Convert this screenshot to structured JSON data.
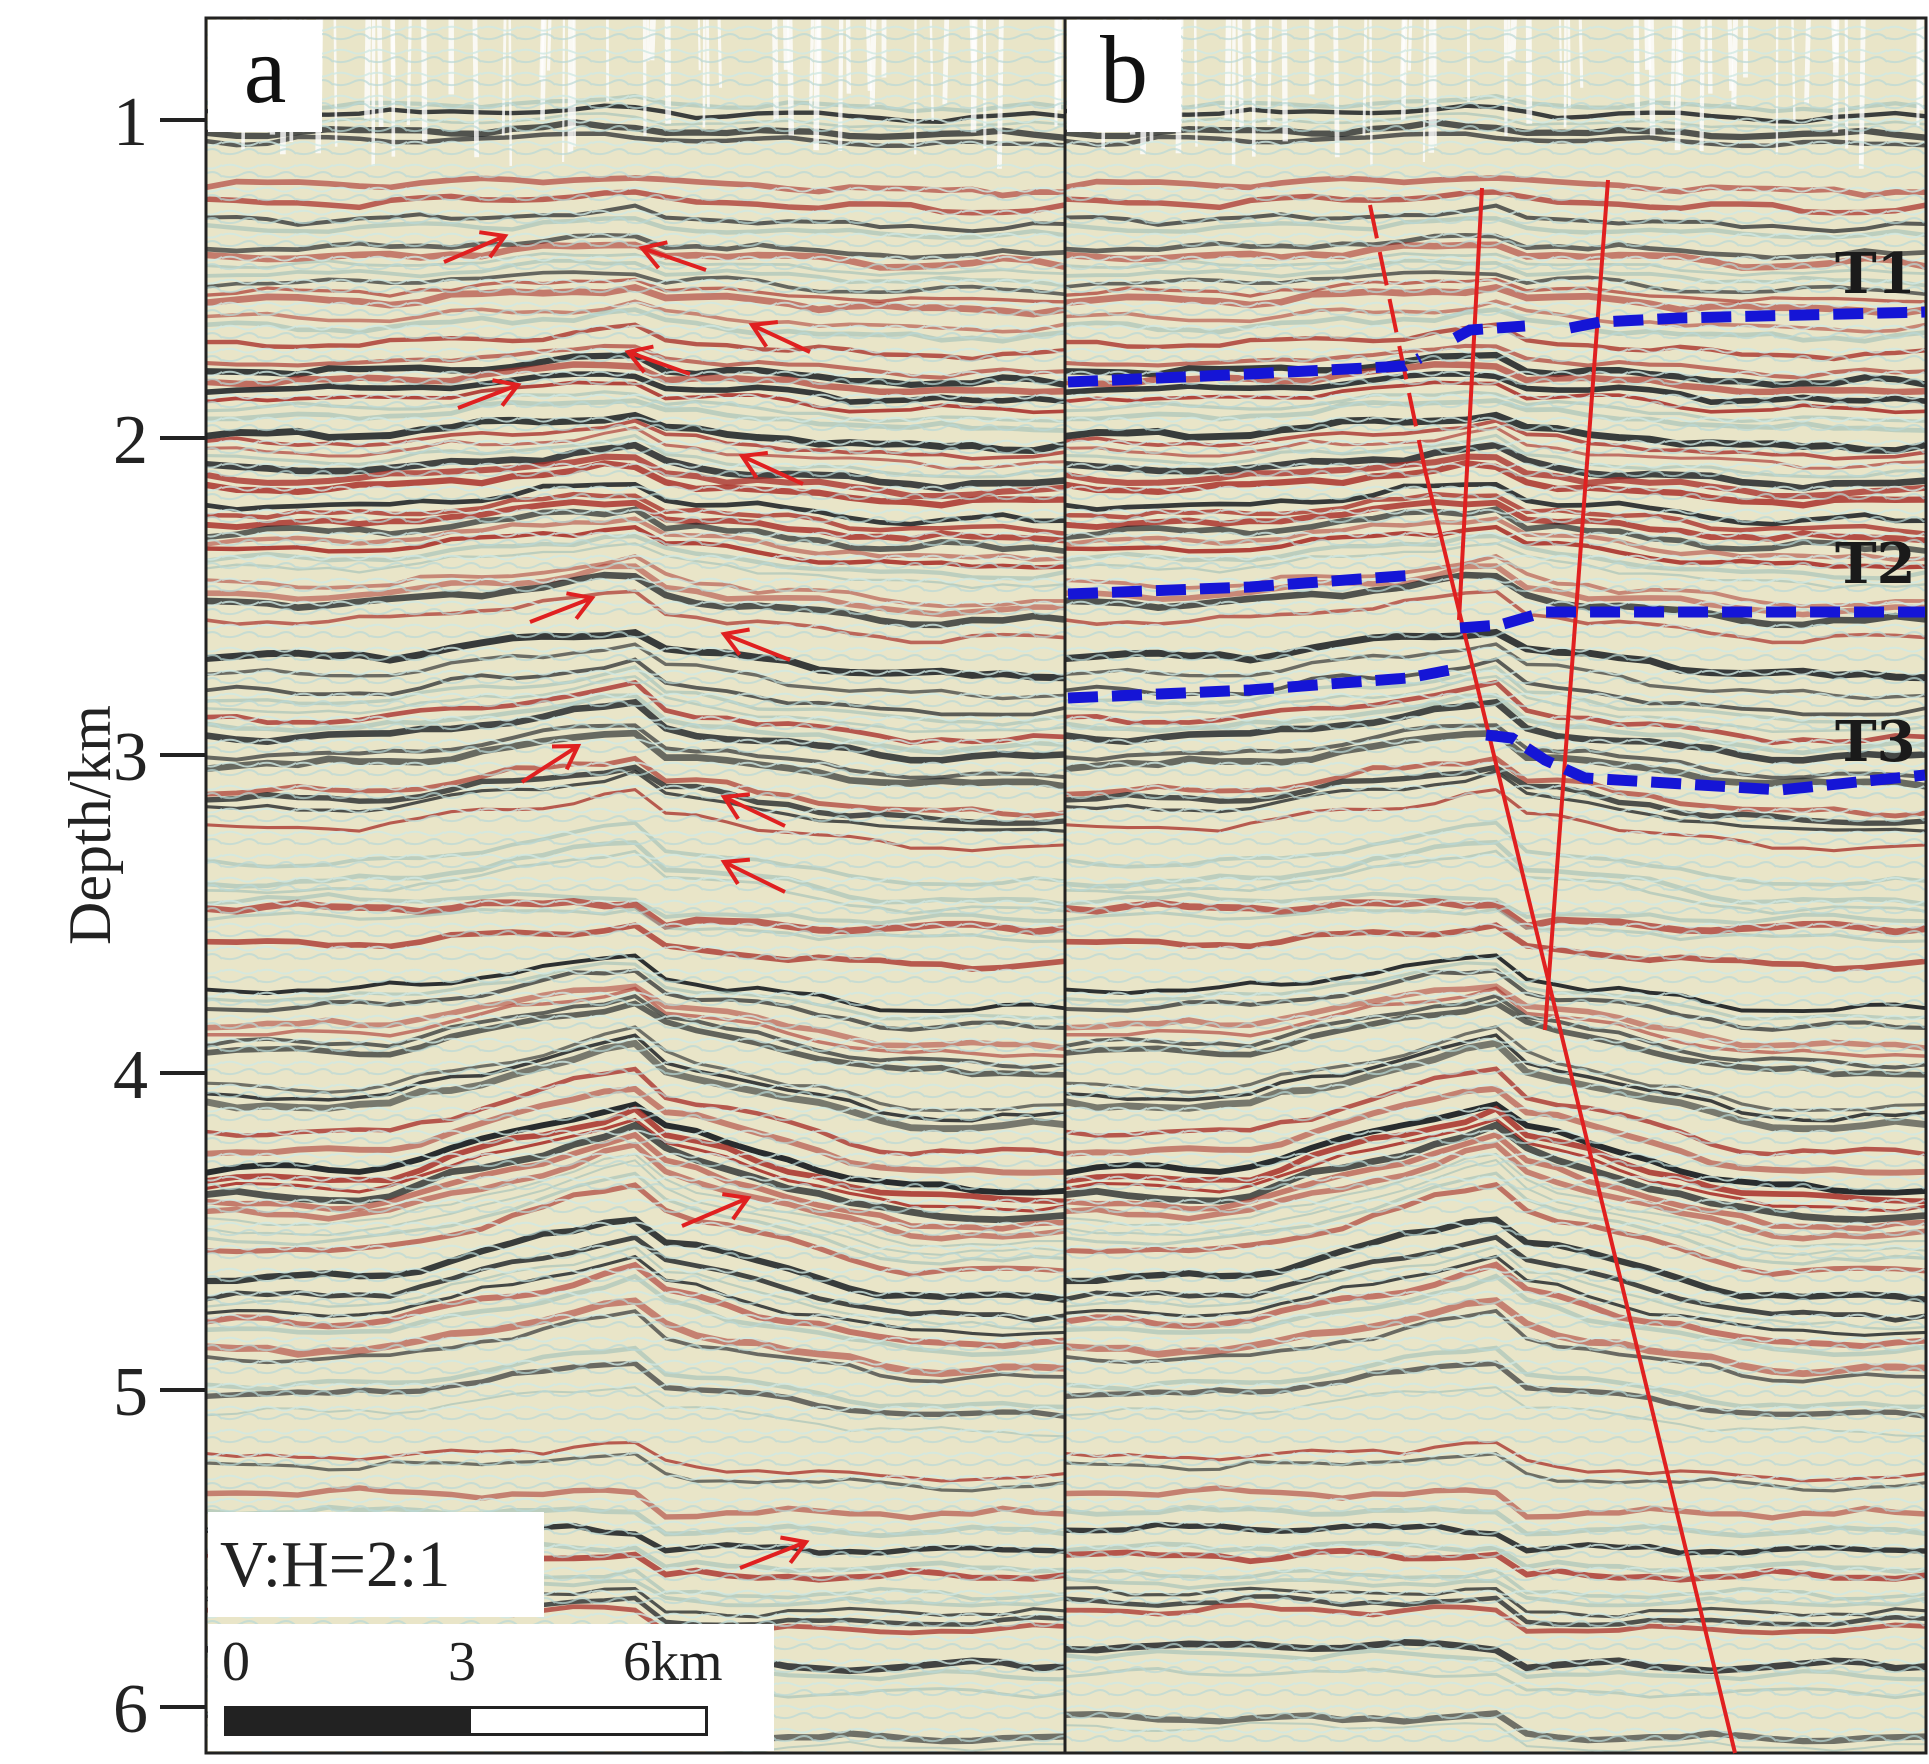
{
  "axis": {
    "ylabel": "Depth/km",
    "ticks": [
      "1",
      "2",
      "3",
      "4",
      "5",
      "6"
    ]
  },
  "panels": [
    {
      "label": "a"
    },
    {
      "label": "b"
    }
  ],
  "horizons": [
    "T1",
    "T2",
    "T3"
  ],
  "annotations": {
    "ratio": "V:H=2:1",
    "scale": {
      "zero": "0",
      "mid": "3",
      "end": "6km"
    }
  },
  "colors": {
    "fault": "#e02020",
    "horizon": "#1515d6",
    "arrow": "#e02020",
    "seismic_red": "#a8302a",
    "seismic_dark": "#1e2226",
    "seismic_bg": "#e9e5c8"
  }
}
